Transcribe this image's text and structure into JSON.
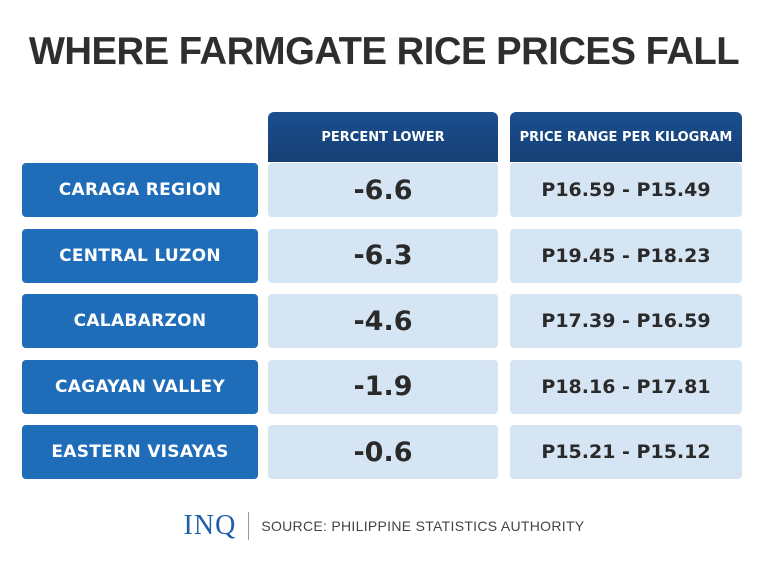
{
  "header": {
    "title": "WHERE FARMGATE RICE PRICES FALL"
  },
  "table": {
    "columns": [
      "PERCENT LOWER",
      "PRICE RANGE PER KILOGRAM"
    ],
    "rows": [
      [
        "CARAGA REGION",
        "-6.6",
        "P16.59 - P15.49"
      ],
      [
        "CENTRAL LUZON",
        "-6.3",
        "P19.45 - P18.23"
      ],
      [
        "CALABARZON",
        "-4.6",
        "P17.39 - P16.59"
      ],
      [
        "CAGAYAN VALLEY",
        "-1.9",
        "P18.16 - P17.81"
      ],
      [
        "EASTERN VISAYAS",
        "-0.6",
        "P15.21 - P15.12"
      ]
    ]
  },
  "footer": {
    "logo": "INQ",
    "source": "SOURCE: PHILIPPINE STATISTICS AUTHORITY"
  }
}
